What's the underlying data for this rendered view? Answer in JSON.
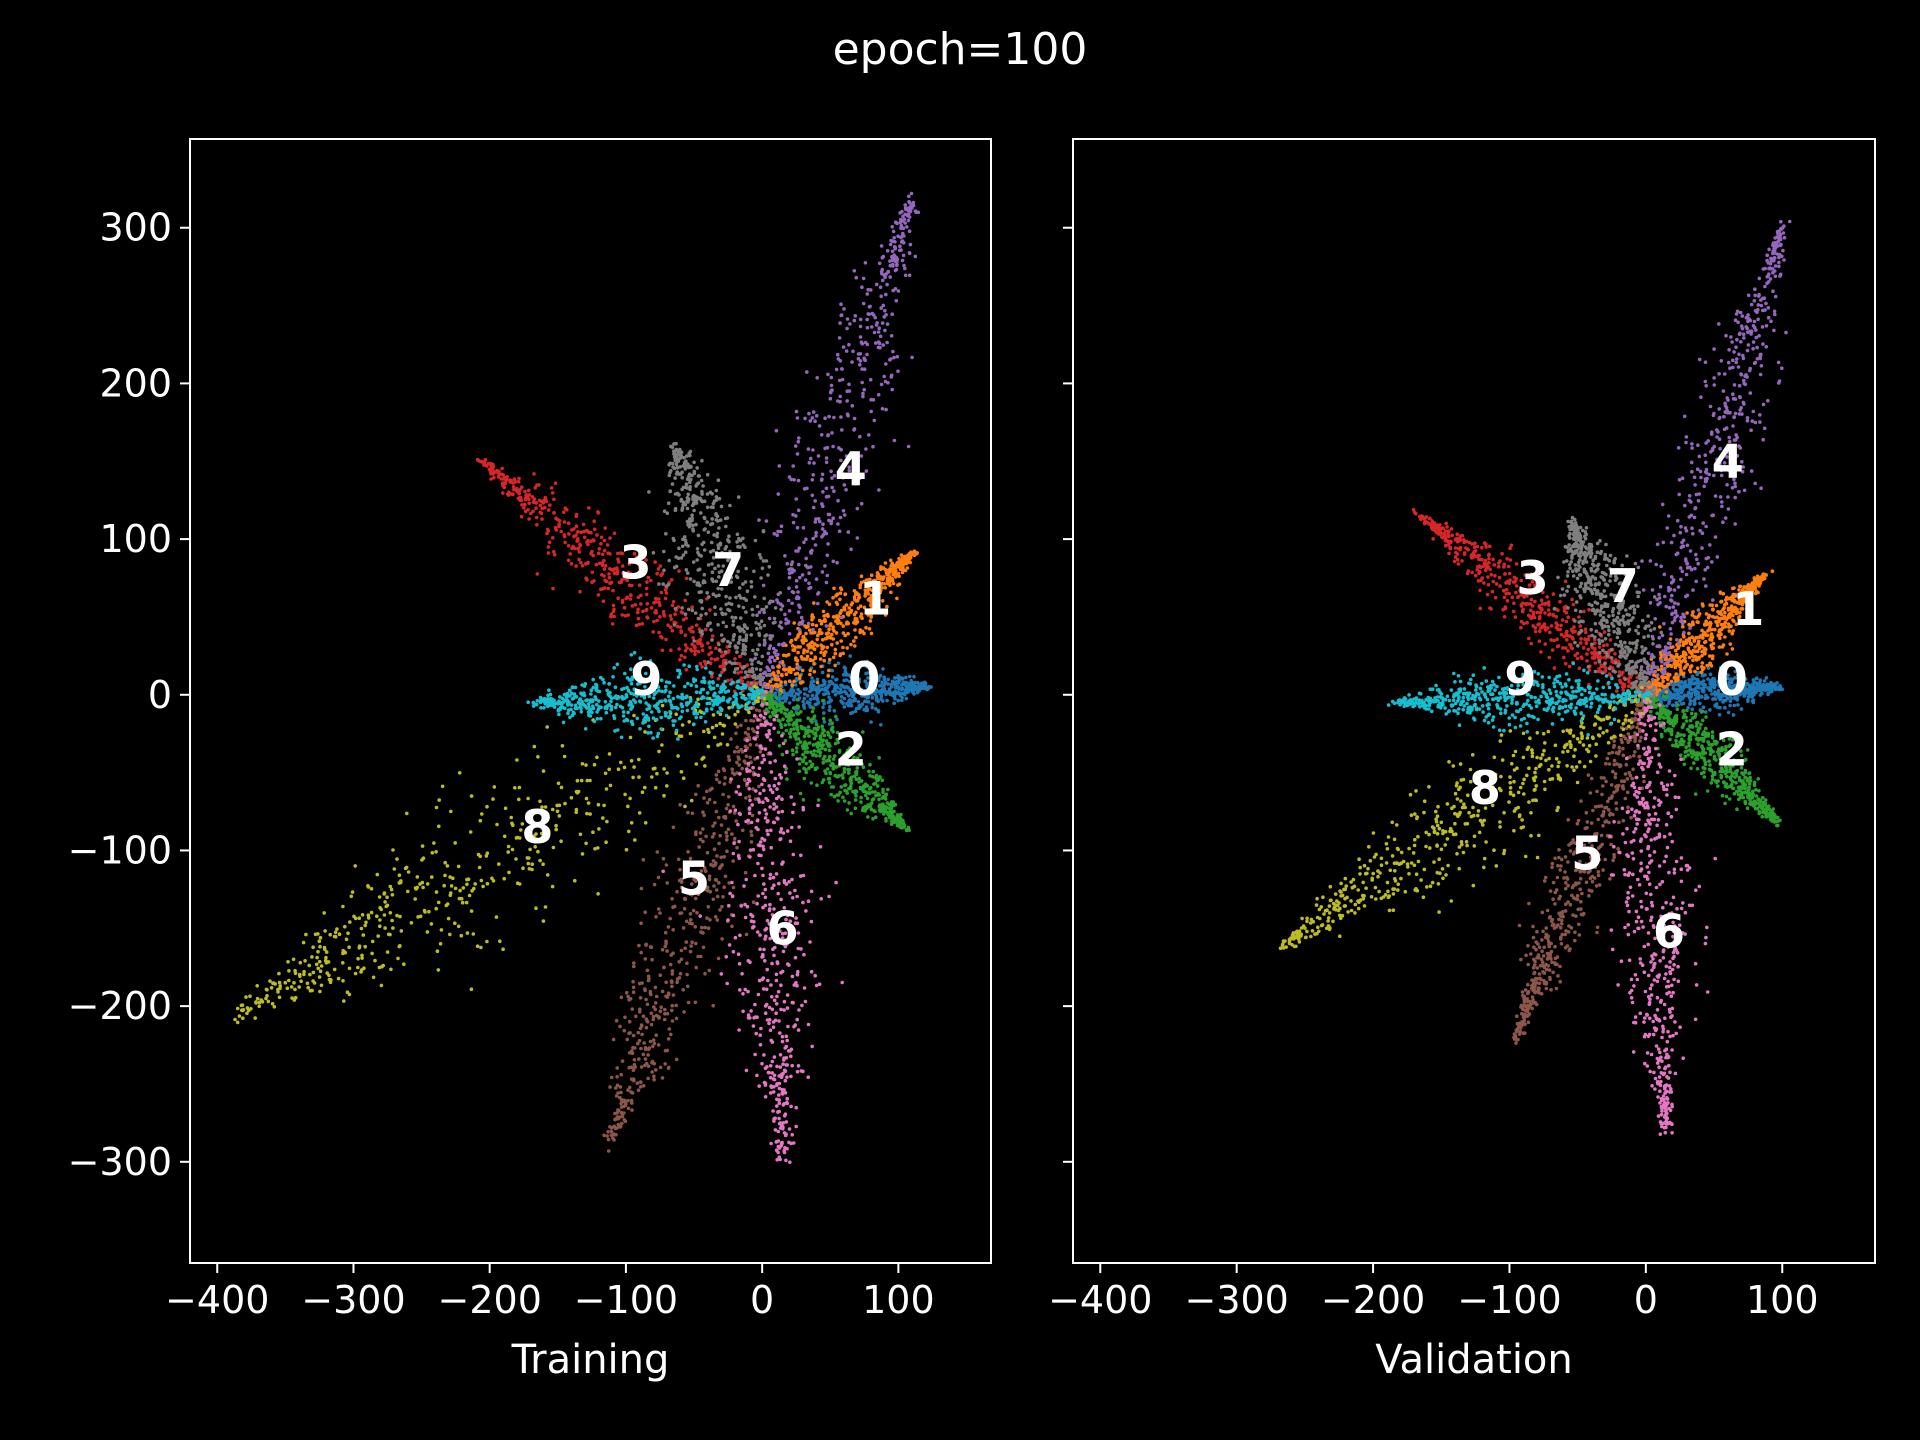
{
  "title": "epoch=100",
  "colors": {
    "0": "#1f77b4",
    "1": "#ff7f0e",
    "2": "#2ca02c",
    "3": "#d62728",
    "4": "#9467bd",
    "5": "#8c564b",
    "6": "#e377c2",
    "7": "#7f7f7f",
    "8": "#bcbd22",
    "9": "#17becf"
  },
  "chart_data": [
    {
      "type": "scatter",
      "xlabel": "Training",
      "xlim": [
        -420,
        168
      ],
      "ylim": [
        -365,
        357
      ],
      "xticks": [
        -400,
        -300,
        -200,
        -100,
        0,
        100
      ],
      "xtick_labels": [
        "−400",
        "−300",
        "−200",
        "−100",
        "0",
        "100"
      ],
      "yticks": [
        300,
        200,
        100,
        0,
        -100,
        -200,
        -300
      ],
      "ytick_labels": [
        "300",
        "200",
        "100",
        "0",
        "−100",
        "−200",
        "−300"
      ],
      "clusters": [
        {
          "label": "0",
          "end": [
            120,
            5
          ],
          "width": 22,
          "label_pos": [
            75,
            10
          ]
        },
        {
          "label": "1",
          "end": [
            110,
            90
          ],
          "width": 26,
          "label_pos": [
            83,
            62
          ]
        },
        {
          "label": "2",
          "end": [
            105,
            -85
          ],
          "width": 28,
          "label_pos": [
            65,
            -35
          ]
        },
        {
          "label": "3",
          "end": [
            -205,
            150
          ],
          "width": 30,
          "label_pos": [
            -93,
            85
          ]
        },
        {
          "label": "4",
          "end": [
            110,
            320
          ],
          "width": 48,
          "label_pos": [
            65,
            145
          ]
        },
        {
          "label": "5",
          "end": [
            -110,
            -285
          ],
          "width": 45,
          "label_pos": [
            -50,
            -118
          ]
        },
        {
          "label": "6",
          "end": [
            15,
            -300
          ],
          "width": 46,
          "label_pos": [
            15,
            -150
          ]
        },
        {
          "label": "7",
          "end": [
            -65,
            160
          ],
          "width": 48,
          "label_pos": [
            -25,
            80
          ]
        },
        {
          "label": "8",
          "end": [
            -385,
            -205
          ],
          "width": 65,
          "label_pos": [
            -165,
            -85
          ]
        },
        {
          "label": "9",
          "end": [
            -165,
            -5
          ],
          "width": 30,
          "label_pos": [
            -85,
            10
          ]
        }
      ]
    },
    {
      "type": "scatter",
      "xlabel": "Validation",
      "xlim": [
        -420,
        168
      ],
      "ylim": [
        -365,
        357
      ],
      "xticks": [
        -400,
        -300,
        -200,
        -100,
        0,
        100
      ],
      "xtick_labels": [
        "−400",
        "−300",
        "−200",
        "−100",
        "0",
        "100"
      ],
      "yticks": [
        300,
        200,
        100,
        0,
        -100,
        -200,
        -300
      ],
      "ytick_labels": [
        "",
        "",
        "",
        "",
        "",
        "",
        ""
      ],
      "clusters": [
        {
          "label": "0",
          "end": [
            95,
            5
          ],
          "width": 18,
          "label_pos": [
            63,
            10
          ]
        },
        {
          "label": "1",
          "end": [
            85,
            75
          ],
          "width": 22,
          "label_pos": [
            75,
            55
          ]
        },
        {
          "label": "2",
          "end": [
            95,
            -80
          ],
          "width": 24,
          "label_pos": [
            63,
            -35
          ]
        },
        {
          "label": "3",
          "end": [
            -165,
            115
          ],
          "width": 26,
          "label_pos": [
            -83,
            75
          ]
        },
        {
          "label": "4",
          "end": [
            100,
            300
          ],
          "width": 38,
          "label_pos": [
            60,
            150
          ]
        },
        {
          "label": "5",
          "end": [
            -95,
            -220
          ],
          "width": 30,
          "label_pos": [
            -43,
            -102
          ]
        },
        {
          "label": "6",
          "end": [
            15,
            -280
          ],
          "width": 38,
          "label_pos": [
            17,
            -152
          ]
        },
        {
          "label": "7",
          "end": [
            -55,
            110
          ],
          "width": 36,
          "label_pos": [
            -17,
            70
          ]
        },
        {
          "label": "8",
          "end": [
            -265,
            -160
          ],
          "width": 46,
          "label_pos": [
            -118,
            -60
          ]
        },
        {
          "label": "9",
          "end": [
            -180,
            -5
          ],
          "width": 24,
          "label_pos": [
            -92,
            10
          ]
        }
      ]
    }
  ]
}
